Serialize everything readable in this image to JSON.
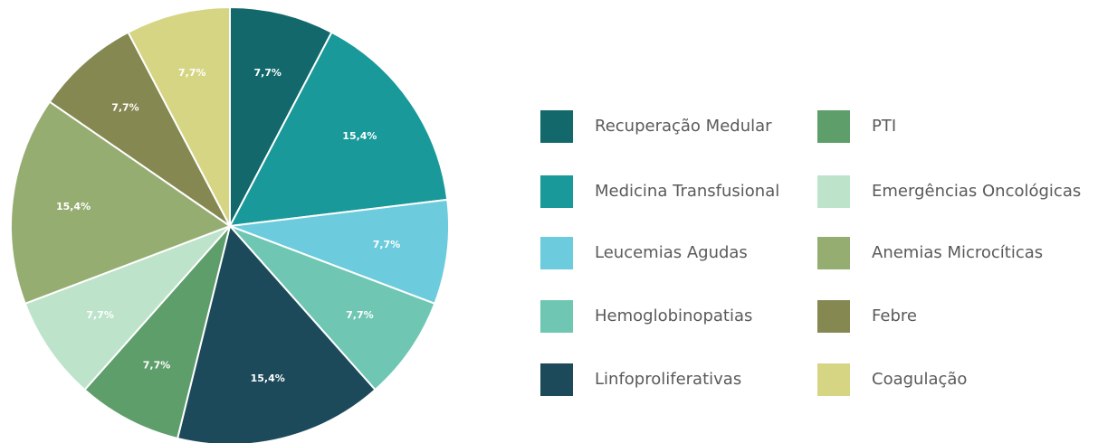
{
  "chart_data": {
    "type": "pie",
    "categories": [
      "Recuperação Medular",
      "Medicina Transfusional",
      "Leucemias Agudas",
      "Hemoglobinopatias",
      "Linfoproliferativas",
      "PTI",
      "Emergências Oncológicas",
      "Anemias Microcíticas",
      "Febre",
      "Coagulação"
    ],
    "values": [
      7.7,
      15.4,
      7.7,
      7.7,
      15.4,
      7.7,
      7.7,
      15.4,
      7.7,
      7.7
    ],
    "value_labels": [
      "7,7%",
      "15,4%",
      "7,7%",
      "7,7%",
      "15,4%",
      "7,7%",
      "7,7%",
      "15,4%",
      "7,7%",
      "7,7%"
    ],
    "colors": [
      "#12686a",
      "#19999a",
      "#6ccbdc",
      "#6fc7b3",
      "#1d4a5a",
      "#5e9e6b",
      "#bde3cb",
      "#96ad72",
      "#858850",
      "#d6d583"
    ]
  }
}
